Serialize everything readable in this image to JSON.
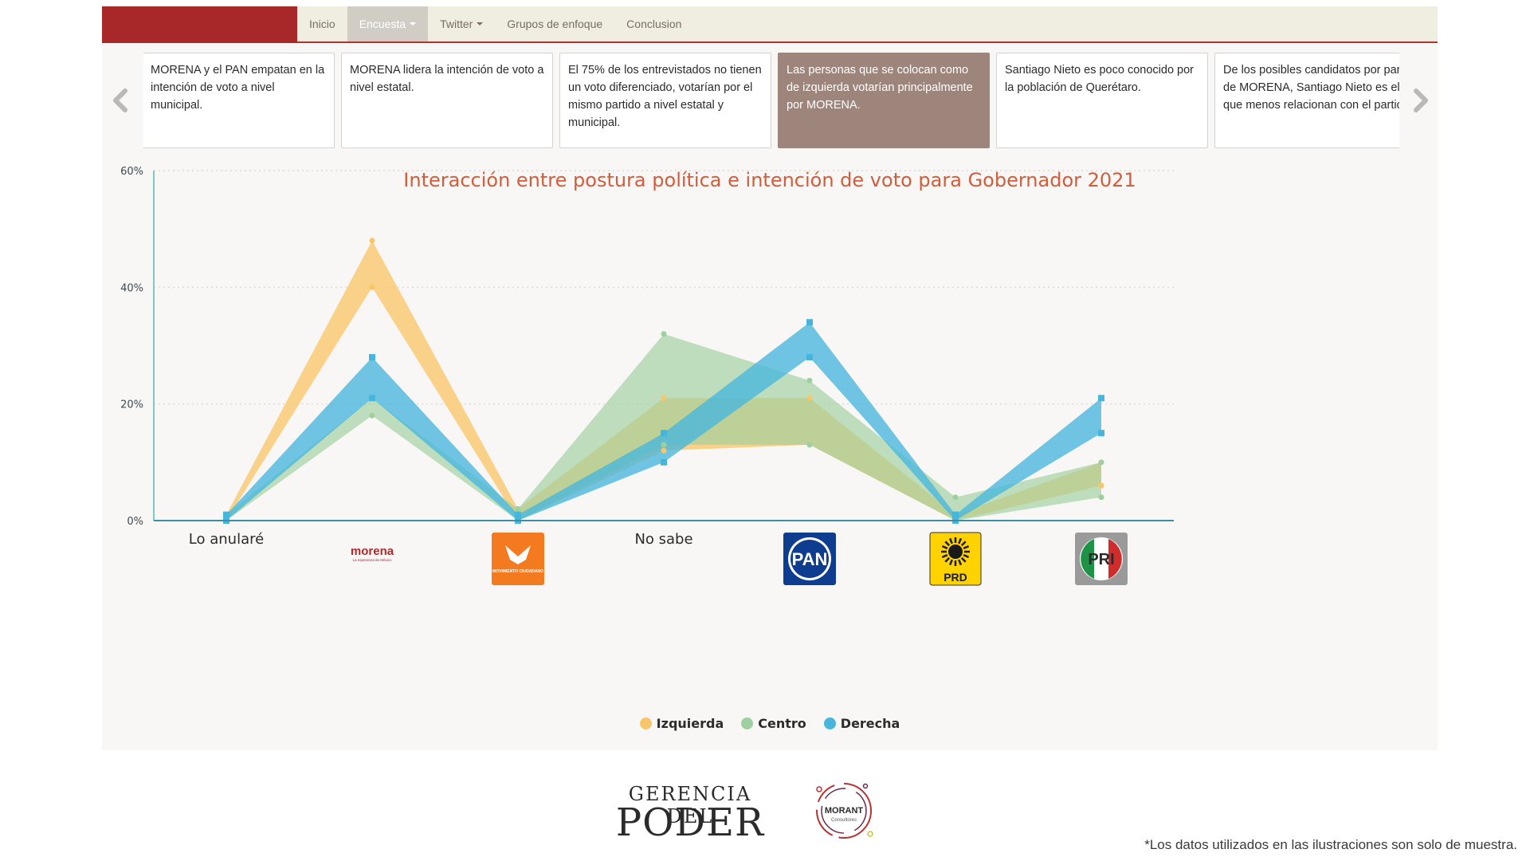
{
  "nav": {
    "items": [
      {
        "label": "Inicio",
        "active": false,
        "dropdown": false
      },
      {
        "label": "Encuesta",
        "active": true,
        "dropdown": true
      },
      {
        "label": "Twitter",
        "active": false,
        "dropdown": true
      },
      {
        "label": "Grupos de enfoque",
        "active": false,
        "dropdown": false
      },
      {
        "label": "Conclusion",
        "active": false,
        "dropdown": false
      }
    ]
  },
  "carousel": {
    "cards": [
      {
        "text": "MORENA y el PAN empatan en la intención de voto a nivel municipal.",
        "active": false
      },
      {
        "text": "MORENA lidera la intención de voto a nivel estatal.",
        "active": false
      },
      {
        "text": "El 75% de los entrevistados no tienen un voto diferenciado, votarían por el mismo partido a nivel estatal y municipal.",
        "active": false
      },
      {
        "text": "Las personas que se colocan como de izquierda votarían principalmente por MORENA.",
        "active": true
      },
      {
        "text": "Santiago Nieto es poco conocido por la población de Querétaro.",
        "active": false
      },
      {
        "text": "De los posibles candidatos por parte de MORENA, Santiago Nieto es el que menos relacionan con el partido.",
        "active": false
      }
    ]
  },
  "colors": {
    "brand": "#a8282a",
    "izquierda": "#f8c66a",
    "centro": "#9dd09e",
    "derecha": "#47b6dc",
    "axis": "#3a8fa6",
    "title": "#d25d3d"
  },
  "chart_data": {
    "type": "area",
    "title": "Interacción entre postura política e intención de voto para Gobernador 2021",
    "categories": [
      "Lo anularé",
      "morena",
      "Movimiento Ciudadano",
      "No sabe",
      "PAN",
      "PRD",
      "PRI"
    ],
    "category_display": [
      {
        "kind": "text",
        "text": "Lo anularé"
      },
      {
        "kind": "logo",
        "icon": "morena-logo-icon",
        "text": "morena",
        "subtext": "La esperanza de México"
      },
      {
        "kind": "logo",
        "icon": "movimiento-ciudadano-logo-icon",
        "text": "MOVIMIENTO CIUDADANO"
      },
      {
        "kind": "text",
        "text": "No sabe"
      },
      {
        "kind": "logo",
        "icon": "pan-logo-icon",
        "text": "PAN"
      },
      {
        "kind": "logo",
        "icon": "prd-logo-icon",
        "text": "PRD"
      },
      {
        "kind": "logo",
        "icon": "pri-logo-icon",
        "text": "PRI"
      }
    ],
    "ylim": [
      0,
      60
    ],
    "yticks": [
      0,
      20,
      40,
      60
    ],
    "ytick_labels": [
      "0%",
      "20%",
      "40%",
      "60%"
    ],
    "grid": true,
    "legend": "bottom-center",
    "series": [
      {
        "name": "Izquierda",
        "color": "#f8c66a",
        "upper": [
          1,
          48,
          2,
          21,
          21,
          1,
          10
        ],
        "lower": [
          0,
          40,
          0,
          12,
          13,
          0,
          6
        ]
      },
      {
        "name": "Centro",
        "color": "#9dd09e",
        "upper": [
          1,
          21,
          2,
          32,
          24,
          4,
          10
        ],
        "lower": [
          0,
          18,
          0,
          13,
          13,
          0,
          4
        ]
      },
      {
        "name": "Derecha",
        "color": "#47b6dc",
        "upper": [
          1,
          28,
          1,
          15,
          34,
          1,
          21
        ],
        "lower": [
          0,
          21,
          0,
          10,
          28,
          0,
          15
        ]
      }
    ]
  },
  "footer": {
    "logo_left_top": "GERENCIA DEL",
    "logo_left_bottom": "PODER",
    "logo_right": "MORANT",
    "logo_right_sub": "Consultores",
    "footnote": "*Los datos utilizados en las ilustraciones son solo de muestra."
  }
}
